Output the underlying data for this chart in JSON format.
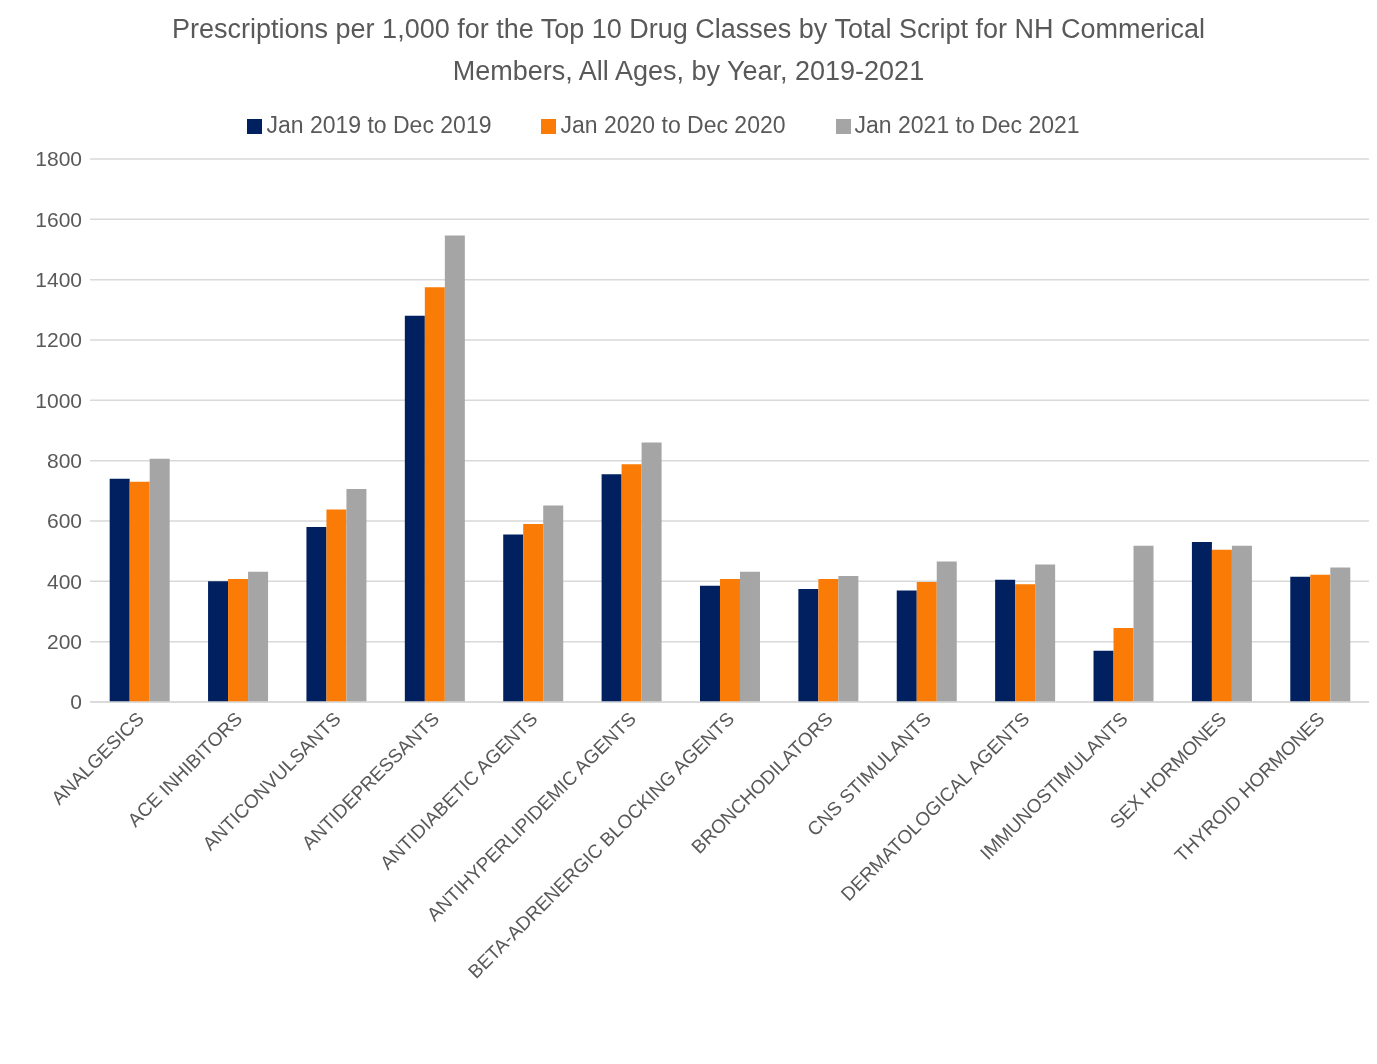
{
  "chart_data": {
    "type": "bar",
    "title": "Prescriptions per 1,000 for the Top 10 Drug Classes by Total Script for NH Commerical Members, All Ages, by Year, 2019-2021",
    "categories": [
      "ANALGESICS",
      "ACE INHIBITORS",
      "ANTICONVULSANTS",
      "ANTIDEPRESSANTS",
      "ANTIDIABETIC AGENTS",
      "ANTIHYPERLIPIDEMIC AGENTS",
      "BETA-ADRENERGIC BLOCKING AGENTS",
      "BRONCHODILATORS",
      "CNS STIMULANTS",
      "DERMATOLOGICAL AGENTS",
      "IMMUNOSTIMULANTS",
      "SEX HORMONES",
      "THYROID HORMONES"
    ],
    "series": [
      {
        "name": "Jan 2019 to Dec 2019",
        "color": "#002060",
        "values": [
          740,
          400,
          580,
          1280,
          555,
          755,
          385,
          375,
          370,
          405,
          170,
          530,
          415
        ]
      },
      {
        "name": "Jan 2020 to Dec 2020",
        "color": "#fa7b05",
        "values": [
          730,
          408,
          638,
          1375,
          590,
          788,
          408,
          408,
          398,
          390,
          245,
          505,
          422
        ]
      },
      {
        "name": "Jan 2021 to Dec 2021",
        "color": "#a5a5a5",
        "values": [
          806,
          432,
          706,
          1546,
          651,
          860,
          432,
          418,
          466,
          456,
          518,
          518,
          446
        ]
      }
    ],
    "ylim": [
      0,
      1800
    ],
    "yticks": [
      0,
      200,
      400,
      600,
      800,
      1000,
      1200,
      1400,
      1600,
      1800
    ],
    "grid": "y",
    "legend": "top"
  }
}
